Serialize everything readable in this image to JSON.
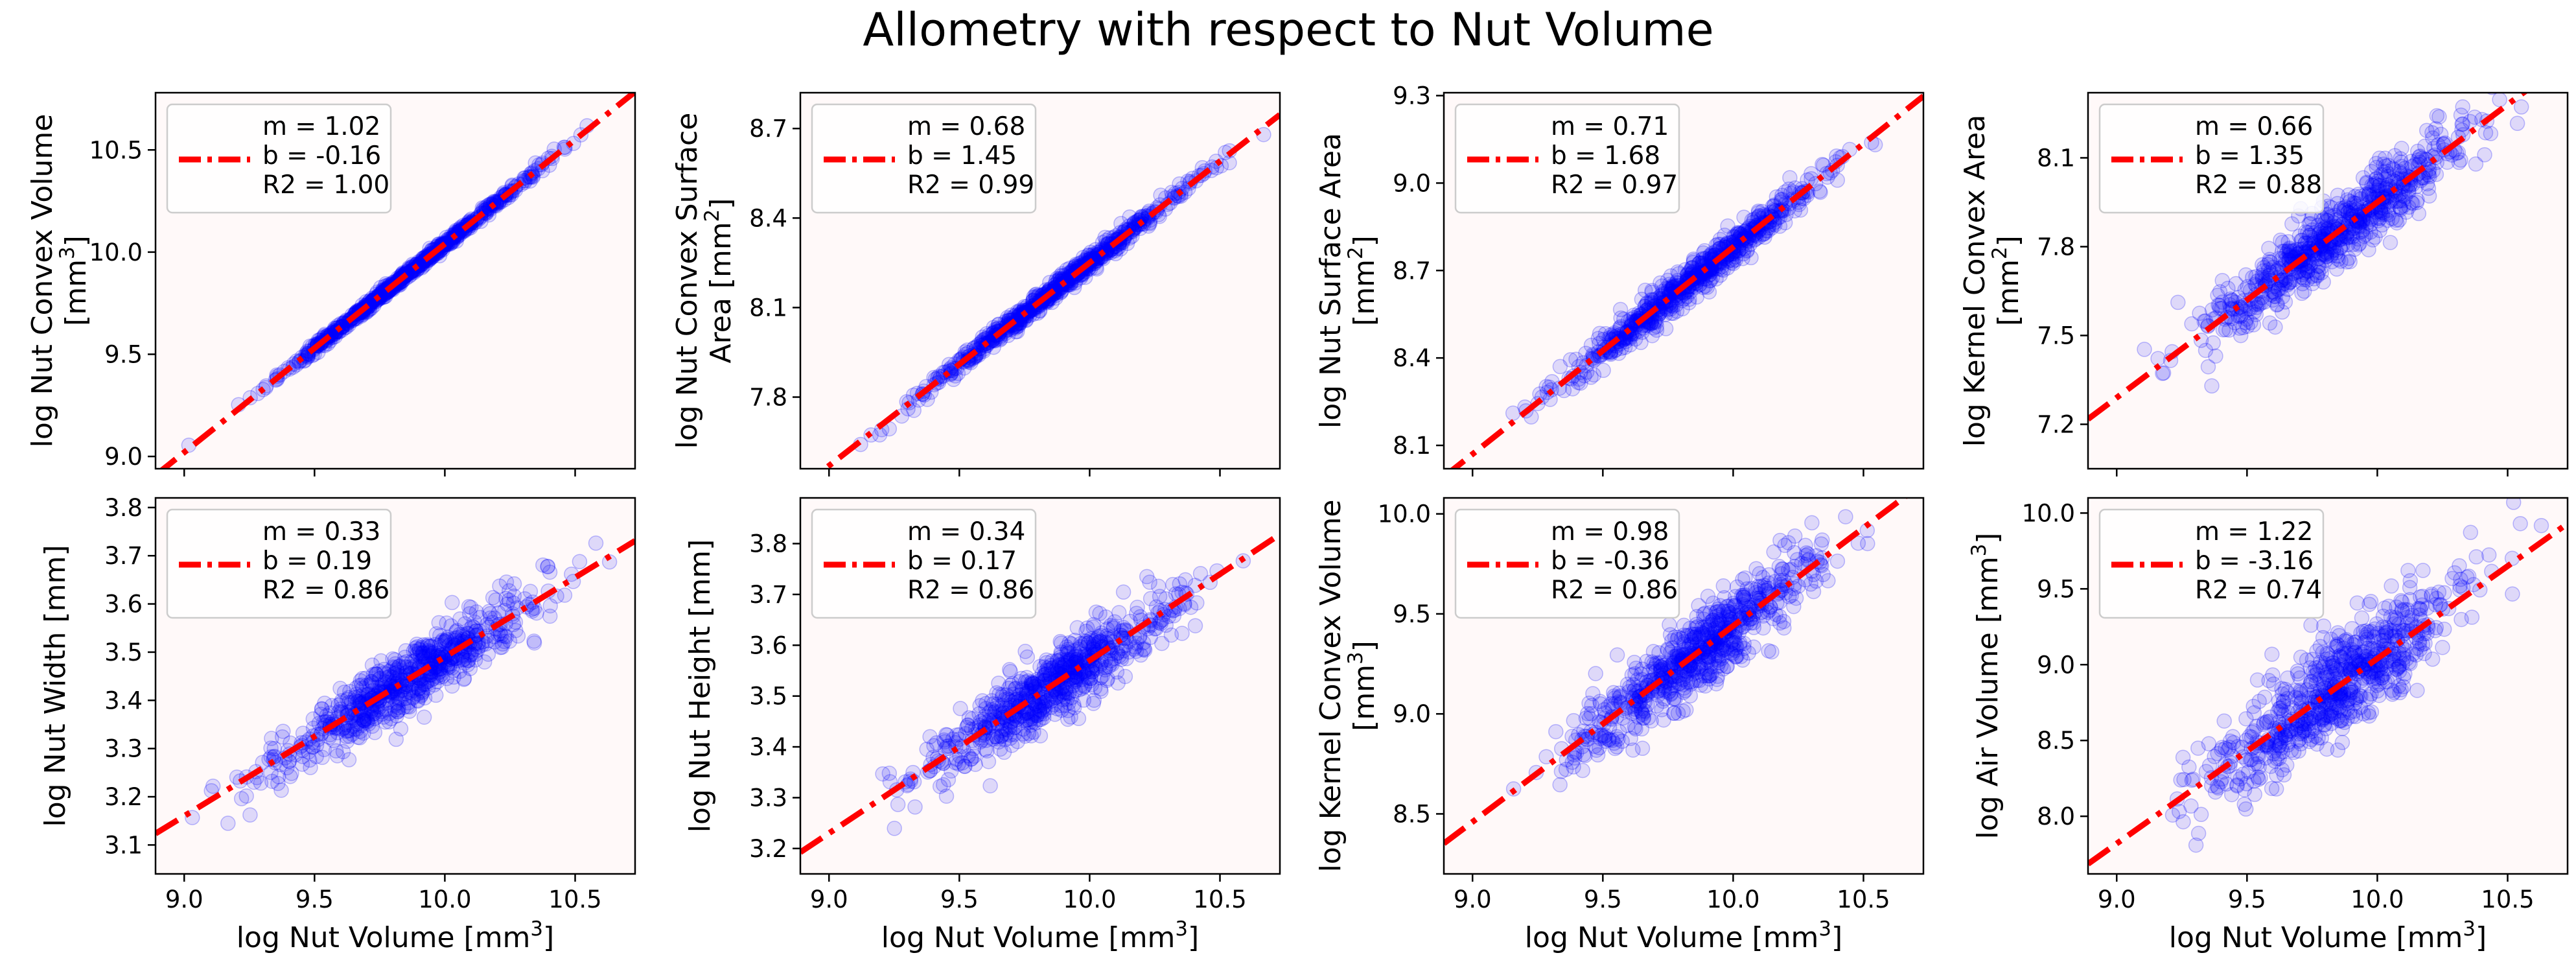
{
  "figure": {
    "title": "Allometry with respect to Nut Volume"
  },
  "chart_data": [
    {
      "type": "scatter",
      "xlabel": "log Nut Volume [mm³]",
      "show_xlabel": false,
      "ylabel_lines": [
        "log Nut Convex Volume",
        "[mm³]"
      ],
      "xlim": [
        8.89,
        10.73
      ],
      "ylim": [
        8.94,
        10.78
      ],
      "xticks": [
        "9.0",
        "9.5",
        "10.0",
        "10.5"
      ],
      "yticks": [
        "9.0",
        "9.5",
        "10.0",
        "10.5"
      ],
      "fit": {
        "slope": 1.02,
        "intercept": -0.16,
        "r2": 1.0
      },
      "legend_lines": [
        "m = 1.02",
        "b = -0.16",
        "R2 = 1.00"
      ],
      "legend_loc": "upper-left",
      "scatter_color": "#0000ff",
      "line_color": "#ff0000",
      "points": {
        "count": 700,
        "seed": 11,
        "x_mean": 9.85,
        "x_sd": 0.24,
        "y_noise_sd": 0.012
      }
    },
    {
      "type": "scatter",
      "xlabel": "log Nut Volume [mm³]",
      "show_xlabel": false,
      "ylabel_lines": [
        "log Nut Convex Surface",
        "Area [mm²]"
      ],
      "xlim": [
        8.89,
        10.73
      ],
      "ylim": [
        7.56,
        8.82
      ],
      "xticks": [
        "9.0",
        "9.5",
        "10.0",
        "10.5"
      ],
      "yticks": [
        "7.8",
        "8.1",
        "8.4",
        "8.7"
      ],
      "fit": {
        "slope": 0.68,
        "intercept": 1.45,
        "r2": 0.99
      },
      "legend_lines": [
        "m = 0.68",
        "b = 1.45",
        "R2 = 0.99"
      ],
      "legend_loc": "upper-left",
      "scatter_color": "#0000ff",
      "line_color": "#ff0000",
      "points": {
        "count": 700,
        "seed": 23,
        "x_mean": 9.85,
        "x_sd": 0.24,
        "y_noise_sd": 0.015
      }
    },
    {
      "type": "scatter",
      "xlabel": "log Nut Volume [mm³]",
      "show_xlabel": false,
      "ylabel_lines": [
        "log Nut Surface Area",
        "[mm²]"
      ],
      "xlim": [
        8.89,
        10.73
      ],
      "ylim": [
        8.02,
        9.31
      ],
      "xticks": [
        "9.0",
        "9.5",
        "10.0",
        "10.5"
      ],
      "yticks": [
        "8.1",
        "8.4",
        "8.7",
        "9.0",
        "9.3"
      ],
      "fit": {
        "slope": 0.71,
        "intercept": 1.68,
        "r2": 0.97
      },
      "legend_lines": [
        "m = 0.71",
        "b = 1.68",
        "R2 = 0.97"
      ],
      "legend_loc": "upper-left",
      "scatter_color": "#0000ff",
      "line_color": "#ff0000",
      "points": {
        "count": 700,
        "seed": 37,
        "x_mean": 9.85,
        "x_sd": 0.24,
        "y_noise_sd": 0.03
      }
    },
    {
      "type": "scatter",
      "xlabel": "log Nut Volume [mm³]",
      "show_xlabel": false,
      "ylabel_lines": [
        "log Kernel Convex Area",
        "[mm²]"
      ],
      "xlim": [
        8.89,
        10.73
      ],
      "ylim": [
        7.05,
        8.32
      ],
      "xticks": [
        "9.0",
        "9.5",
        "10.0",
        "10.5"
      ],
      "yticks": [
        "7.2",
        "7.5",
        "7.8",
        "8.1"
      ],
      "fit": {
        "slope": 0.66,
        "intercept": 1.35,
        "r2": 0.88
      },
      "legend_lines": [
        "m = 0.66",
        "b = 1.35",
        "R2 = 0.88"
      ],
      "legend_loc": "upper-left",
      "scatter_color": "#0000ff",
      "line_color": "#ff0000",
      "points": {
        "count": 700,
        "seed": 41,
        "x_mean": 9.85,
        "x_sd": 0.24,
        "y_noise_sd": 0.06
      }
    },
    {
      "type": "scatter",
      "xlabel": "log Nut Volume [mm³]",
      "show_xlabel": true,
      "ylabel_lines": [
        "log Nut Width [mm]"
      ],
      "xlim": [
        8.89,
        10.73
      ],
      "ylim": [
        3.04,
        3.82
      ],
      "xticks": [
        "9.0",
        "9.5",
        "10.0",
        "10.5"
      ],
      "yticks": [
        "3.1",
        "3.2",
        "3.3",
        "3.4",
        "3.5",
        "3.6",
        "3.7",
        "3.8"
      ],
      "fit": {
        "slope": 0.33,
        "intercept": 0.19,
        "r2": 0.86
      },
      "legend_lines": [
        "m = 0.33",
        "b = 0.19",
        "R2 = 0.86"
      ],
      "legend_loc": "upper-left",
      "scatter_color": "#0000ff",
      "line_color": "#ff0000",
      "points": {
        "count": 700,
        "seed": 53,
        "x_mean": 9.85,
        "x_sd": 0.24,
        "y_noise_sd": 0.032
      }
    },
    {
      "type": "scatter",
      "xlabel": "log Nut Volume [mm³]",
      "show_xlabel": true,
      "ylabel_lines": [
        "log Nut Height [mm]"
      ],
      "xlim": [
        8.89,
        10.73
      ],
      "ylim": [
        3.15,
        3.89
      ],
      "xticks": [
        "9.0",
        "9.5",
        "10.0",
        "10.5"
      ],
      "yticks": [
        "3.2",
        "3.3",
        "3.4",
        "3.5",
        "3.6",
        "3.7",
        "3.8"
      ],
      "fit": {
        "slope": 0.34,
        "intercept": 0.17,
        "r2": 0.86
      },
      "legend_lines": [
        "m = 0.34",
        "b = 0.17",
        "R2 = 0.86"
      ],
      "legend_loc": "upper-left",
      "scatter_color": "#0000ff",
      "line_color": "#ff0000",
      "points": {
        "count": 700,
        "seed": 67,
        "x_mean": 9.85,
        "x_sd": 0.24,
        "y_noise_sd": 0.032
      }
    },
    {
      "type": "scatter",
      "xlabel": "log Nut Volume [mm³]",
      "show_xlabel": true,
      "ylabel_lines": [
        "log Kernel Convex Volume",
        "[mm³]"
      ],
      "xlim": [
        8.89,
        10.73
      ],
      "ylim": [
        8.2,
        10.08
      ],
      "xticks": [
        "9.0",
        "9.5",
        "10.0",
        "10.5"
      ],
      "yticks": [
        "8.5",
        "9.0",
        "9.5",
        "10.0"
      ],
      "fit": {
        "slope": 0.98,
        "intercept": -0.36,
        "r2": 0.86
      },
      "legend_lines": [
        "m = 0.98",
        "b = -0.36",
        "R2 = 0.86"
      ],
      "legend_loc": "upper-left",
      "scatter_color": "#0000ff",
      "line_color": "#ff0000",
      "points": {
        "count": 700,
        "seed": 79,
        "x_mean": 9.85,
        "x_sd": 0.24,
        "y_noise_sd": 0.095
      }
    },
    {
      "type": "scatter",
      "xlabel": "log Nut Volume [mm³]",
      "show_xlabel": true,
      "ylabel_lines": [
        "log Air Volume [mm³]"
      ],
      "xlim": [
        8.89,
        10.73
      ],
      "ylim": [
        7.62,
        10.1
      ],
      "xticks": [
        "9.0",
        "9.5",
        "10.0",
        "10.5"
      ],
      "yticks": [
        "8.0",
        "8.5",
        "9.0",
        "9.5",
        "10.0"
      ],
      "fit": {
        "slope": 1.22,
        "intercept": -3.16,
        "r2": 0.74
      },
      "legend_lines": [
        "m = 1.22",
        "b = -3.16",
        "R2 = 0.74"
      ],
      "legend_loc": "upper-left",
      "scatter_color": "#0000ff",
      "line_color": "#ff0000",
      "points": {
        "count": 700,
        "seed": 97,
        "x_mean": 9.85,
        "x_sd": 0.24,
        "y_noise_sd": 0.17
      }
    }
  ]
}
